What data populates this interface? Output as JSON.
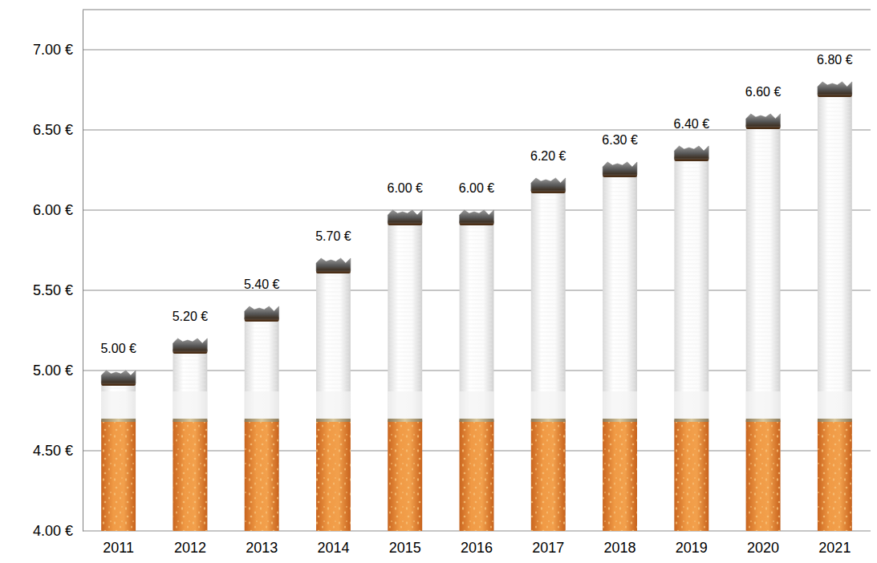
{
  "chart_data": {
    "type": "bar",
    "categories": [
      "2011",
      "2012",
      "2013",
      "2014",
      "2015",
      "2016",
      "2017",
      "2018",
      "2019",
      "2020",
      "2021"
    ],
    "values": [
      5.0,
      5.2,
      5.4,
      5.7,
      6.0,
      6.0,
      6.2,
      6.3,
      6.4,
      6.6,
      6.8
    ],
    "value_labels": [
      "5.00 €",
      "5.20 €",
      "5.40 €",
      "5.70 €",
      "6.00 €",
      "6.00 €",
      "6.20 €",
      "6.30 €",
      "6.40 €",
      "6.60 €",
      "6.80 €"
    ],
    "ylim": [
      4,
      7.25
    ],
    "yticks": [
      {
        "value": 4,
        "label": "4.00 €"
      },
      {
        "value": 4.5,
        "label": "4.50 €"
      },
      {
        "value": 5,
        "label": "5.00 €"
      },
      {
        "value": 5.5,
        "label": "5.50 €"
      },
      {
        "value": 6,
        "label": "6.00 €"
      },
      {
        "value": 6.5,
        "label": "6.50 €"
      },
      {
        "value": 7,
        "label": "7.00 €"
      }
    ],
    "grid": true,
    "data_labels": true
  }
}
